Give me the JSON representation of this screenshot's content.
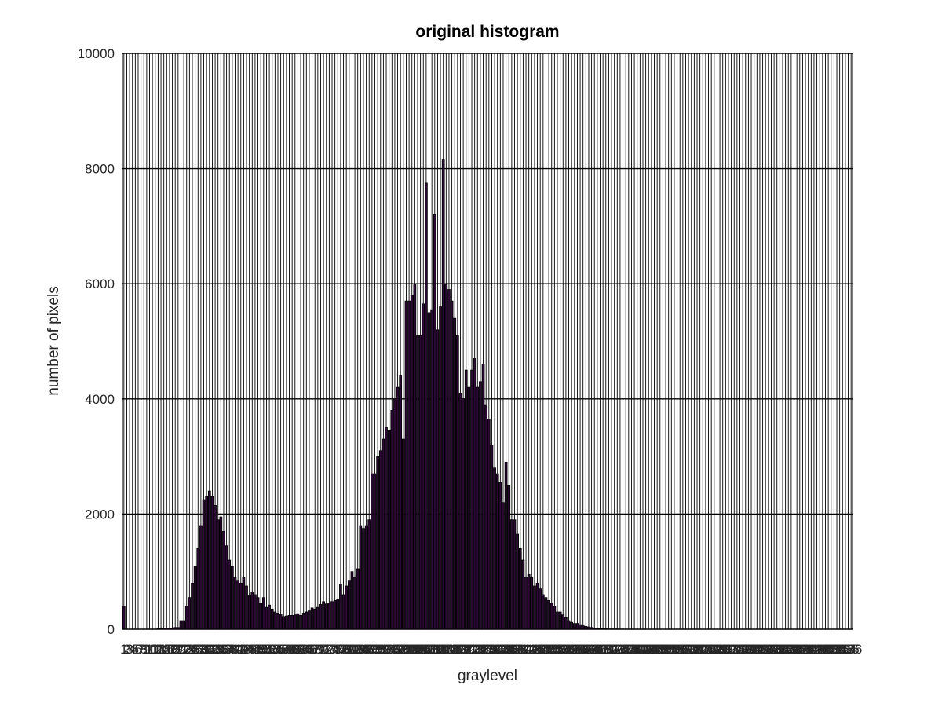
{
  "chart_data": {
    "type": "bar",
    "title": "original histogram",
    "xlabel": "graylevel",
    "ylabel": "number of pixels",
    "ylim": [
      0,
      10000
    ],
    "yticks": [
      0,
      2000,
      4000,
      6000,
      8000,
      10000
    ],
    "xlim": [
      0.5,
      256.5
    ],
    "grid": true,
    "bar_color": "#2a0a33",
    "bar_edge_color": "#000000",
    "grid_color": "#000000",
    "categories": [
      1,
      2,
      3,
      4,
      5,
      6,
      7,
      8,
      9,
      10,
      11,
      12,
      13,
      14,
      15,
      16,
      17,
      18,
      19,
      20,
      21,
      22,
      23,
      24,
      25,
      26,
      27,
      28,
      29,
      30,
      31,
      32,
      33,
      34,
      35,
      36,
      37,
      38,
      39,
      40,
      41,
      42,
      43,
      44,
      45,
      46,
      47,
      48,
      49,
      50,
      51,
      52,
      53,
      54,
      55,
      56,
      57,
      58,
      59,
      60,
      61,
      62,
      63,
      64,
      65,
      66,
      67,
      68,
      69,
      70,
      71,
      72,
      73,
      74,
      75,
      76,
      77,
      78,
      79,
      80,
      81,
      82,
      83,
      84,
      85,
      86,
      87,
      88,
      89,
      90,
      91,
      92,
      93,
      94,
      95,
      96,
      97,
      98,
      99,
      100,
      101,
      102,
      103,
      104,
      105,
      106,
      107,
      108,
      109,
      110,
      111,
      112,
      113,
      114,
      115,
      116,
      117,
      118,
      119,
      120,
      121,
      122,
      123,
      124,
      125,
      126,
      127,
      128,
      129,
      130,
      131,
      132,
      133,
      134,
      135,
      136,
      137,
      138,
      139,
      140,
      141,
      142,
      143,
      144,
      145,
      146,
      147,
      148,
      149,
      150,
      151,
      152,
      153,
      154,
      155,
      156,
      157,
      158,
      159,
      160,
      161,
      162,
      163,
      164,
      165,
      166,
      167,
      168,
      169,
      170,
      171,
      172,
      173,
      174,
      175,
      176,
      177,
      178,
      179,
      180,
      181,
      182,
      183,
      184,
      185,
      186,
      187,
      188,
      189,
      190,
      191,
      192,
      193,
      194,
      195,
      196,
      197,
      198,
      199,
      200,
      201,
      202,
      203,
      204,
      205,
      206,
      207,
      208,
      209,
      210,
      211,
      212,
      213,
      214,
      215,
      216,
      217,
      218,
      219,
      220,
      221,
      222,
      223,
      224,
      225,
      226,
      227,
      228,
      229,
      230,
      231,
      232,
      233,
      234,
      235,
      236,
      237,
      238,
      239,
      240,
      241,
      242,
      243,
      244,
      245,
      246,
      247,
      248,
      249,
      250,
      251,
      252,
      253,
      254,
      255,
      256
    ],
    "values": [
      400,
      0,
      0,
      0,
      0,
      0,
      0,
      0,
      0,
      0,
      0,
      0,
      10,
      10,
      20,
      20,
      20,
      20,
      30,
      30,
      150,
      150,
      400,
      550,
      800,
      1100,
      1400,
      1800,
      2250,
      2300,
      2400,
      2300,
      2150,
      1900,
      1950,
      1700,
      1450,
      1200,
      1100,
      900,
      850,
      800,
      900,
      750,
      580,
      650,
      600,
      550,
      450,
      550,
      380,
      420,
      350,
      300,
      280,
      260,
      220,
      230,
      240,
      240,
      250,
      270,
      240,
      280,
      300,
      320,
      370,
      350,
      380,
      430,
      480,
      440,
      450,
      480,
      500,
      520,
      780,
      600,
      750,
      850,
      1000,
      900,
      1050,
      1800,
      1750,
      1800,
      1900,
      2700,
      2700,
      3000,
      3100,
      3300,
      3500,
      3450,
      3800,
      4000,
      4200,
      4400,
      3300,
      5700,
      5700,
      5800,
      6000,
      5100,
      5100,
      5650,
      7750,
      5500,
      5550,
      7200,
      5200,
      5600,
      8150,
      6000,
      5900,
      5700,
      5400,
      5100,
      4100,
      4000,
      4500,
      4200,
      4500,
      4700,
      4200,
      4300,
      4600,
      3900,
      3650,
      3200,
      2800,
      2700,
      2550,
      2200,
      2900,
      2500,
      1900,
      1900,
      1650,
      1400,
      1200,
      900,
      950,
      900,
      750,
      800,
      700,
      600,
      550,
      500,
      450,
      400,
      300,
      300,
      250,
      200,
      150,
      120,
      100,
      100,
      80,
      60,
      50,
      40,
      30,
      20,
      15,
      10,
      10,
      10,
      5,
      5,
      5,
      5,
      3,
      3,
      2,
      2,
      2,
      1,
      1,
      1,
      1,
      1,
      1,
      0,
      0,
      0,
      0,
      0,
      0,
      0,
      0,
      0,
      0,
      0,
      0,
      0,
      0,
      0,
      0,
      0,
      0,
      0,
      0,
      0,
      0,
      0,
      0,
      0,
      0,
      0,
      0,
      0,
      0,
      0,
      0,
      0,
      0,
      0,
      0,
      0,
      0,
      0,
      0,
      0,
      0,
      0,
      0,
      0,
      0,
      0,
      0,
      0,
      0,
      0,
      0,
      0,
      0,
      0,
      0,
      0,
      0,
      0,
      0,
      0,
      0,
      0,
      0,
      0,
      0,
      0,
      0,
      0,
      0,
      0
    ]
  }
}
